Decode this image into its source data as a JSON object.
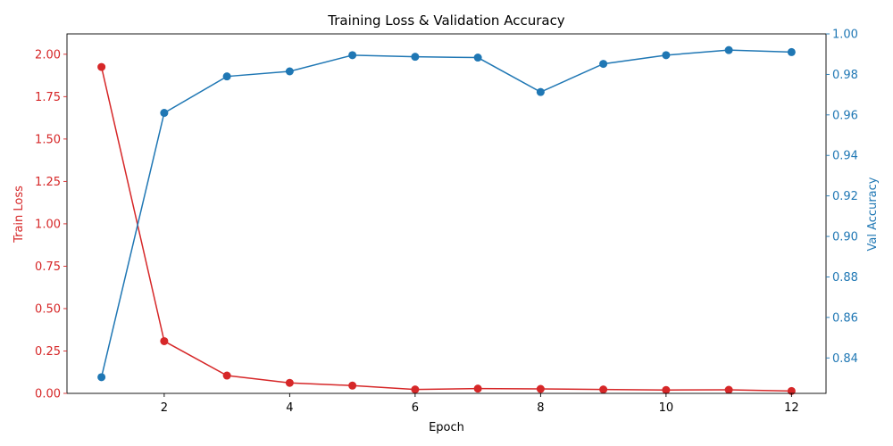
{
  "chart_data": {
    "type": "line",
    "title": "Training Loss & Validation Accuracy",
    "xlabel": "Epoch",
    "x": [
      1,
      2,
      3,
      4,
      5,
      6,
      7,
      8,
      9,
      10,
      11,
      12
    ],
    "xticks": [
      "2",
      "4",
      "6",
      "8",
      "10",
      "12"
    ],
    "xlim": [
      0.45,
      12.55
    ],
    "grid": false,
    "left_axis": {
      "label": "Train Loss",
      "color": "#d62728",
      "ylim": [
        0,
        2.12
      ],
      "ticks": [
        "0.00",
        "0.25",
        "0.50",
        "0.75",
        "1.00",
        "1.25",
        "1.50",
        "1.75",
        "2.00"
      ]
    },
    "right_axis": {
      "label": "Val Accuracy",
      "color": "#1f77b4",
      "ylim": [
        0.8225,
        1.0
      ],
      "ticks": [
        "0.84",
        "0.86",
        "0.88",
        "0.90",
        "0.92",
        "0.94",
        "0.96",
        "0.98",
        "1.00"
      ]
    },
    "series": [
      {
        "axis": "left",
        "color": "#d62728",
        "values": [
          1.925,
          0.308,
          0.105,
          0.062,
          0.046,
          0.023,
          0.028,
          0.026,
          0.023,
          0.02,
          0.021,
          0.014
        ]
      },
      {
        "axis": "right",
        "color": "#1f77b4",
        "values": [
          0.8305,
          0.961,
          0.979,
          0.9815,
          0.9895,
          0.9887,
          0.9883,
          0.9713,
          0.9852,
          0.9895,
          0.992,
          0.991
        ]
      }
    ]
  }
}
